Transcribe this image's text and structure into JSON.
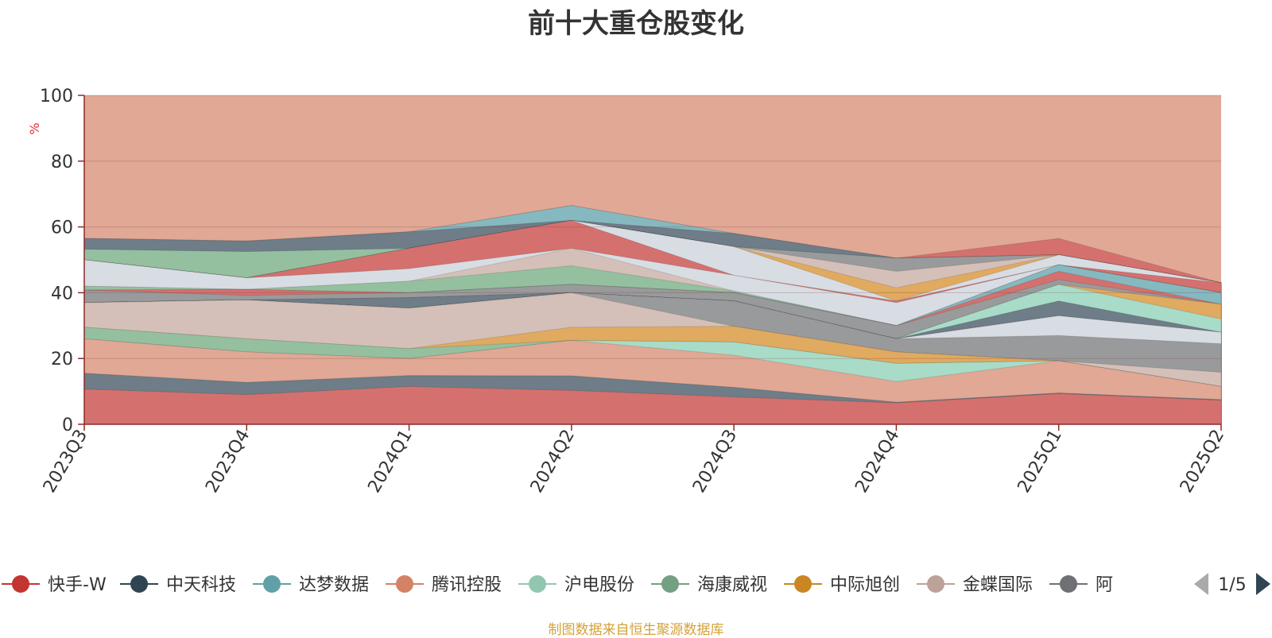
{
  "page_title": "前十大重仓股变化",
  "footer": "制图数据来自恒生聚源数据库",
  "legend_pager": {
    "text": "1/5"
  },
  "colors": {
    "background_area": "#e0a895",
    "axis": "#8b2a2a",
    "pager_active": "#2f4554",
    "pager_inactive": "#aaaaaa",
    "footer": "#d4a23a"
  },
  "chart_data": {
    "type": "area",
    "title": "前十大重仓股变化",
    "ylabel": "%",
    "ylim": [
      0,
      100
    ],
    "yticks": [
      0,
      20,
      40,
      60,
      80,
      100
    ],
    "grid": true,
    "legend_placement": "bottom",
    "categories": [
      "2023Q3",
      "2023Q4",
      "2024Q1",
      "2024Q2",
      "2024Q3",
      "2024Q4",
      "2025Q1",
      "2025Q2"
    ],
    "stack_boundaries": [
      {
        "color": "#d4716e",
        "values": [
          10.7,
          9,
          11.5,
          10.3,
          8.3,
          6.5,
          9.3,
          7.3
        ]
      },
      {
        "color": "#6e7d88",
        "values": [
          15.5,
          12.7,
          14.8,
          14.7,
          11.2,
          6.7,
          9.5,
          7.5
        ]
      },
      {
        "color": "#86b8c0",
        "values": [
          15.5,
          12.7,
          14.8,
          14.7,
          11.2,
          6.7,
          9.5,
          7.5
        ]
      },
      {
        "color": "#e0a895",
        "values": [
          26,
          22,
          20,
          25.5,
          21,
          13,
          19.3,
          11.5
        ]
      },
      {
        "color": "#a8dcc8",
        "values": [
          26,
          22,
          20,
          25.5,
          25,
          18.5,
          19.3,
          11.5
        ]
      },
      {
        "color": "#94c0a0",
        "values": [
          29.5,
          26,
          23,
          25.5,
          25,
          18.5,
          19.3,
          11.5
        ]
      },
      {
        "color": "#e0aa60",
        "values": [
          29.5,
          26,
          23,
          29.5,
          29.8,
          22,
          19.3,
          11.5
        ]
      },
      {
        "color": "#d4c0b8",
        "values": [
          37,
          37.8,
          35.3,
          40,
          29.8,
          22,
          19.3,
          15.8
        ]
      },
      {
        "color": "#999a9c",
        "values": [
          37,
          37.8,
          35.3,
          40,
          37.5,
          26,
          27,
          24.5
        ]
      },
      {
        "color": "#d8dde4",
        "values": [
          37,
          37.8,
          35.3,
          40,
          37.5,
          26,
          33,
          28
        ]
      },
      {
        "color": "#d4716e",
        "values": [
          37,
          37.8,
          35.3,
          40,
          37.5,
          26,
          33,
          28
        ]
      },
      {
        "color": "#6e7d88",
        "values": [
          37,
          37.8,
          38.5,
          40,
          37.5,
          26,
          37.5,
          28
        ]
      },
      {
        "color": "#a8dcc8",
        "values": [
          37,
          37.8,
          38.5,
          40,
          37.5,
          26,
          42.5,
          32
        ]
      },
      {
        "color": "#e0aa60",
        "values": [
          37,
          37.8,
          38.5,
          40,
          37.5,
          26,
          42.5,
          36.5
        ]
      },
      {
        "color": "#999a9c",
        "values": [
          40.8,
          39.2,
          40,
          42.5,
          40,
          30,
          44,
          36.5
        ]
      },
      {
        "color": "#d4716e",
        "values": [
          40.8,
          41,
          40,
          42.5,
          40,
          30,
          46.5,
          36.5
        ]
      },
      {
        "color": "#86b8c0",
        "values": [
          40.8,
          41,
          40,
          42.5,
          40,
          30,
          48.5,
          40
        ]
      },
      {
        "color": "#94c0a0",
        "values": [
          42,
          41,
          43.5,
          48.2,
          40.5,
          30,
          48.5,
          40
        ]
      },
      {
        "color": "#d4c0b8",
        "values": [
          42,
          41,
          43.5,
          53.5,
          40.5,
          30,
          48.5,
          40
        ]
      },
      {
        "color": "#d8dde4",
        "values": [
          50,
          44.5,
          47.3,
          53.5,
          45.3,
          37,
          48.5,
          40
        ]
      },
      {
        "color": "#d4716e",
        "values": [
          50,
          44.5,
          53.5,
          62,
          45.3,
          37.5,
          48.5,
          43
        ]
      },
      {
        "color": "#d8dde4",
        "values": [
          50,
          44.5,
          53.5,
          62,
          54,
          37.5,
          51.5,
          43
        ]
      },
      {
        "color": "#e0aa60",
        "values": [
          50,
          44.5,
          53.5,
          62,
          54,
          41.5,
          51.5,
          43
        ]
      },
      {
        "color": "#d4c0b8",
        "values": [
          50,
          44.5,
          53.5,
          62,
          54,
          46.5,
          51.5,
          43
        ]
      },
      {
        "color": "#999a9c",
        "values": [
          50,
          44.5,
          53.5,
          62,
          54,
          50.5,
          51.5,
          43
        ]
      },
      {
        "color": "#94c0a0",
        "values": [
          53.2,
          52.5,
          53.5,
          62,
          54,
          50.5,
          51.5,
          43
        ]
      },
      {
        "color": "#6e7d88",
        "values": [
          56.5,
          55.7,
          58.5,
          62,
          58,
          50.5,
          51.5,
          43
        ]
      },
      {
        "color": "#86b8c0",
        "values": [
          56.5,
          55.7,
          58.5,
          66.5,
          58,
          50.5,
          51.5,
          43
        ]
      },
      {
        "color": "#d4716e",
        "values": [
          56.5,
          55.7,
          58.5,
          66.5,
          58,
          50.5,
          56.5,
          43
        ]
      }
    ],
    "series": [
      {
        "name": "快手-W",
        "color": "#c23531"
      },
      {
        "name": "中天科技",
        "color": "#2f4554"
      },
      {
        "name": "达梦数据",
        "color": "#61a0a8"
      },
      {
        "name": "腾讯控股",
        "color": "#d48265"
      },
      {
        "name": "沪电股份",
        "color": "#91c7ae"
      },
      {
        "name": "海康威视",
        "color": "#749f83"
      },
      {
        "name": "中际旭创",
        "color": "#ca8622"
      },
      {
        "name": "金蝶国际",
        "color": "#bda29a"
      },
      {
        "name": "阿",
        "color": "#6e7074"
      }
    ]
  }
}
